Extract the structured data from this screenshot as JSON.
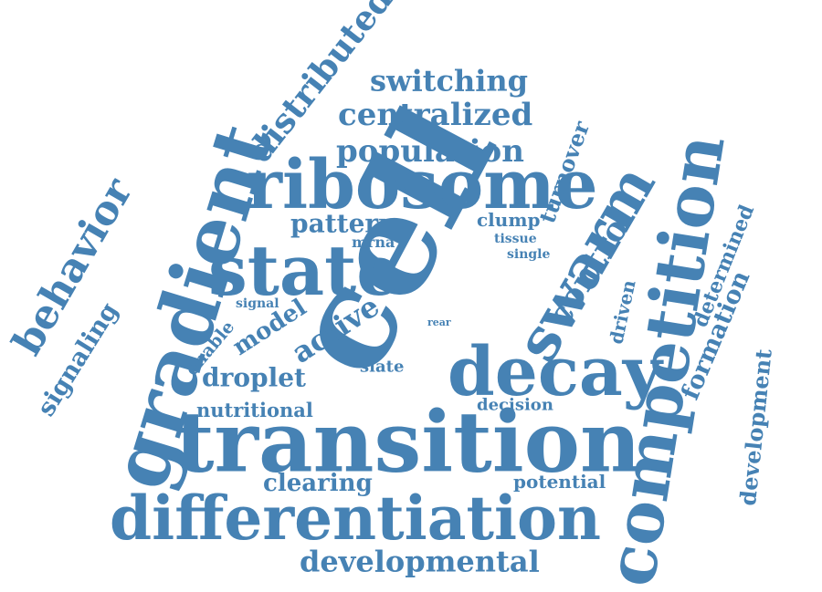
{
  "color": "#4682b4",
  "background": "#ffffff",
  "words": [
    {
      "id": "cell",
      "text": "cell"
    },
    {
      "id": "transition",
      "text": "transition"
    },
    {
      "id": "differentiation",
      "text": "differentiation"
    },
    {
      "id": "competition",
      "text": "competition"
    },
    {
      "id": "gradient",
      "text": "gradient"
    },
    {
      "id": "ribosome",
      "text": "ribosome"
    },
    {
      "id": "state",
      "text": "state"
    },
    {
      "id": "decay",
      "text": "decay"
    },
    {
      "id": "swarm",
      "text": "swarm"
    },
    {
      "id": "behavior",
      "text": "behavior"
    },
    {
      "id": "distributed",
      "text": "distributed"
    },
    {
      "id": "centralized",
      "text": "centralized"
    },
    {
      "id": "population",
      "text": "population"
    },
    {
      "id": "switching",
      "text": "switching"
    },
    {
      "id": "developmental",
      "text": "developmental"
    },
    {
      "id": "control",
      "text": "control"
    },
    {
      "id": "pattern",
      "text": "pattern"
    },
    {
      "id": "signaling",
      "text": "signaling"
    },
    {
      "id": "active",
      "text": "active"
    },
    {
      "id": "model",
      "text": "model"
    },
    {
      "id": "droplet",
      "text": "droplet"
    },
    {
      "id": "nutritional",
      "text": "nutritional"
    },
    {
      "id": "clearing",
      "text": "clearing"
    },
    {
      "id": "potential",
      "text": "potential"
    },
    {
      "id": "decision",
      "text": "decision"
    },
    {
      "id": "turnover",
      "text": "turnover"
    },
    {
      "id": "formation",
      "text": "formation"
    },
    {
      "id": "determined",
      "text": "determined"
    },
    {
      "id": "development",
      "text": "development"
    },
    {
      "id": "driven",
      "text": "driven"
    },
    {
      "id": "enable",
      "text": "enable"
    },
    {
      "id": "clump",
      "text": "clump"
    },
    {
      "id": "mrna",
      "text": "mrna"
    },
    {
      "id": "tissue",
      "text": "tissue"
    },
    {
      "id": "single",
      "text": "single"
    },
    {
      "id": "signal",
      "text": "signal"
    },
    {
      "id": "slate",
      "text": "slate"
    },
    {
      "id": "rear",
      "text": "rear"
    }
  ]
}
